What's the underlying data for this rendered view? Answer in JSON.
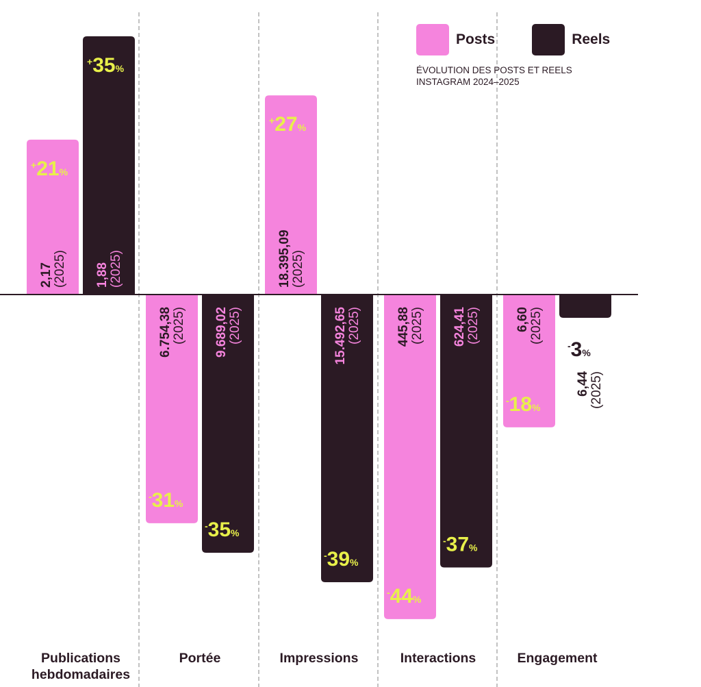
{
  "legend": {
    "posts_label": "Posts",
    "reels_label": "Reels",
    "title_line1": "ÉVOLUTION DES POSTS ET REELS",
    "title_line2": "INSTAGRAM 2024–2025"
  },
  "colors": {
    "posts": "#f584dd",
    "reels": "#2b1a24",
    "percent": "#e8f04a"
  },
  "chart_data": {
    "type": "bar",
    "title": "ÉVOLUTION DES POSTS ET REELS INSTAGRAM 2024–2025",
    "categories": [
      [
        "Publications",
        "hebdomadaires"
      ],
      [
        "Portée"
      ],
      [
        "Impressions"
      ],
      [
        "Interactions"
      ],
      [
        "Engagement"
      ]
    ],
    "series": [
      {
        "name": "Posts",
        "values": [
          21,
          -31,
          27,
          -44,
          -18
        ],
        "labels": [
          "2,17",
          "6.754,38",
          "18.395,09",
          "445,88",
          "6,60"
        ]
      },
      {
        "name": "Reels",
        "values": [
          35,
          -35,
          -39,
          -37,
          -3
        ],
        "labels": [
          "1,88",
          "9.689,02",
          "15.492,65",
          "624,41",
          "6,44"
        ]
      }
    ],
    "value_suffix": "(2025)",
    "unit": "%",
    "ylim": [
      -50,
      35
    ]
  }
}
